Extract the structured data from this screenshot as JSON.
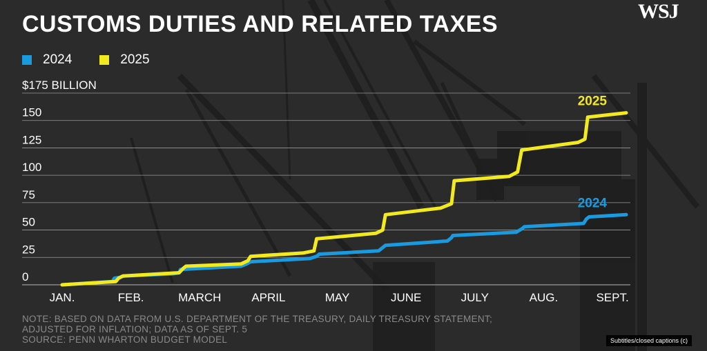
{
  "header": {
    "title": "CUSTOMS DUTIES AND RELATED TAXES",
    "logo": "WSJ"
  },
  "colors": {
    "series_2024": "#1a9be0",
    "series_2025": "#f2ea1f",
    "grid": "#9a9a9a",
    "text": "#ffffff",
    "note": "#8a8a8a"
  },
  "chart_data": {
    "type": "line",
    "title": "CUSTOMS DUTIES AND RELATED TAXES",
    "ylabel": "$175 BILLION",
    "xlabel": "",
    "ylim": [
      0,
      175
    ],
    "y_ticks": [
      {
        "value": 0,
        "label": "0"
      },
      {
        "value": 25,
        "label": "25"
      },
      {
        "value": 50,
        "label": "50"
      },
      {
        "value": 75,
        "label": "75"
      },
      {
        "value": 100,
        "label": "100"
      },
      {
        "value": 125,
        "label": "125"
      },
      {
        "value": 150,
        "label": "150"
      },
      {
        "value": 175,
        "label": "$175 BILLION"
      }
    ],
    "xlim": [
      0,
      8.2
    ],
    "x_ticks": [
      {
        "value": 0,
        "label": "JAN."
      },
      {
        "value": 1,
        "label": "FEB."
      },
      {
        "value": 2,
        "label": "MARCH"
      },
      {
        "value": 3,
        "label": "APRIL"
      },
      {
        "value": 4,
        "label": "MAY"
      },
      {
        "value": 5,
        "label": "JUNE"
      },
      {
        "value": 6,
        "label": "JULY"
      },
      {
        "value": 7,
        "label": "AUG."
      },
      {
        "value": 8,
        "label": "SEPT."
      }
    ],
    "grid": true,
    "legend_position": "top-left",
    "series": [
      {
        "name": "2024",
        "end_label": "2024",
        "color": "#1a9be0",
        "points": [
          [
            0,
            0
          ],
          [
            0.73,
            3
          ],
          [
            0.76,
            6
          ],
          [
            0.85,
            7
          ],
          [
            0.9,
            8
          ],
          [
            1.6,
            10
          ],
          [
            1.7,
            11
          ],
          [
            1.72,
            14
          ],
          [
            2.6,
            17
          ],
          [
            2.68,
            19
          ],
          [
            2.74,
            21
          ],
          [
            3.6,
            24
          ],
          [
            3.7,
            26
          ],
          [
            3.74,
            28
          ],
          [
            4.6,
            31
          ],
          [
            4.66,
            34
          ],
          [
            4.7,
            36
          ],
          [
            5.6,
            40
          ],
          [
            5.66,
            43
          ],
          [
            5.68,
            45
          ],
          [
            6.6,
            48
          ],
          [
            6.68,
            51
          ],
          [
            6.72,
            53
          ],
          [
            7.58,
            56
          ],
          [
            7.62,
            60
          ],
          [
            7.66,
            62
          ],
          [
            8.2,
            64
          ]
        ]
      },
      {
        "name": "2025",
        "end_label": "2025",
        "color": "#f2ea1f",
        "points": [
          [
            0,
            0
          ],
          [
            0.78,
            3
          ],
          [
            0.82,
            6
          ],
          [
            0.88,
            8
          ],
          [
            1.7,
            11
          ],
          [
            1.76,
            15
          ],
          [
            1.8,
            17
          ],
          [
            2.6,
            19
          ],
          [
            2.7,
            22
          ],
          [
            2.74,
            26
          ],
          [
            3.5,
            29
          ],
          [
            3.66,
            31
          ],
          [
            3.7,
            42
          ],
          [
            4.56,
            47
          ],
          [
            4.66,
            50
          ],
          [
            4.7,
            64
          ],
          [
            5.5,
            70
          ],
          [
            5.66,
            74
          ],
          [
            5.7,
            95
          ],
          [
            6.5,
            99
          ],
          [
            6.62,
            103
          ],
          [
            6.68,
            123
          ],
          [
            7.5,
            130
          ],
          [
            7.6,
            133
          ],
          [
            7.64,
            153
          ],
          [
            8.2,
            157
          ]
        ]
      }
    ]
  },
  "legend": [
    {
      "label": "2024",
      "color": "#1a9be0"
    },
    {
      "label": "2025",
      "color": "#f2ea1f"
    }
  ],
  "note": {
    "line1": "NOTE: BASED ON DATA FROM U.S. DEPARTMENT OF THE TREASURY, DAILY TREASURY STATEMENT;",
    "line2": "ADJUSTED FOR INFLATION; DATA AS OF SEPT. 5",
    "line3": "SOURCE: PENN WHARTON BUDGET MODEL"
  },
  "captions_button": {
    "label": "Subtitles/closed captions (c)"
  }
}
